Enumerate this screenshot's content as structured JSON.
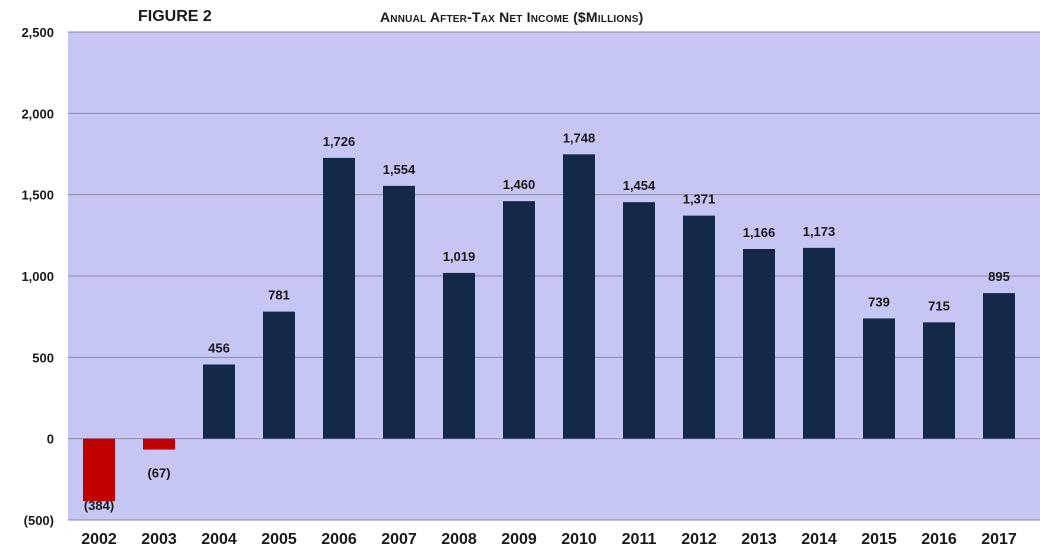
{
  "figure_label": "FIGURE 2",
  "chart_data": {
    "type": "bar",
    "title": "Annual After-Tax Net Income ($Millions)",
    "xlabel": "",
    "ylabel": "",
    "categories": [
      "2002",
      "2003",
      "2004",
      "2005",
      "2006",
      "2007",
      "2008",
      "2009",
      "2010",
      "2011",
      "2012",
      "2013",
      "2014",
      "2015",
      "2016",
      "2017"
    ],
    "values": [
      -384,
      -67,
      456,
      781,
      1726,
      1554,
      1019,
      1460,
      1748,
      1454,
      1371,
      1166,
      1173,
      739,
      715,
      895
    ],
    "data_labels": [
      "(384)",
      "(67)",
      "456",
      "781",
      "1,726",
      "1,554",
      "1,019",
      "1,460",
      "1,748",
      "1,454",
      "1,371",
      "1,166",
      "1,173",
      "739",
      "715",
      "895"
    ],
    "ylim": [
      -500,
      2500
    ],
    "yticks": [
      -500,
      0,
      500,
      1000,
      1500,
      2000,
      2500
    ],
    "ytick_labels": [
      "(500)",
      "0",
      "500",
      "1,000",
      "1,500",
      "2,000",
      "2,500"
    ],
    "grid": true,
    "legend": "none",
    "colors": {
      "positive": "#14284a",
      "negative": "#c00000",
      "plot_background": "#c6c6f5",
      "gridline": "#8a8aa8",
      "text": "#1a1a1a"
    }
  }
}
